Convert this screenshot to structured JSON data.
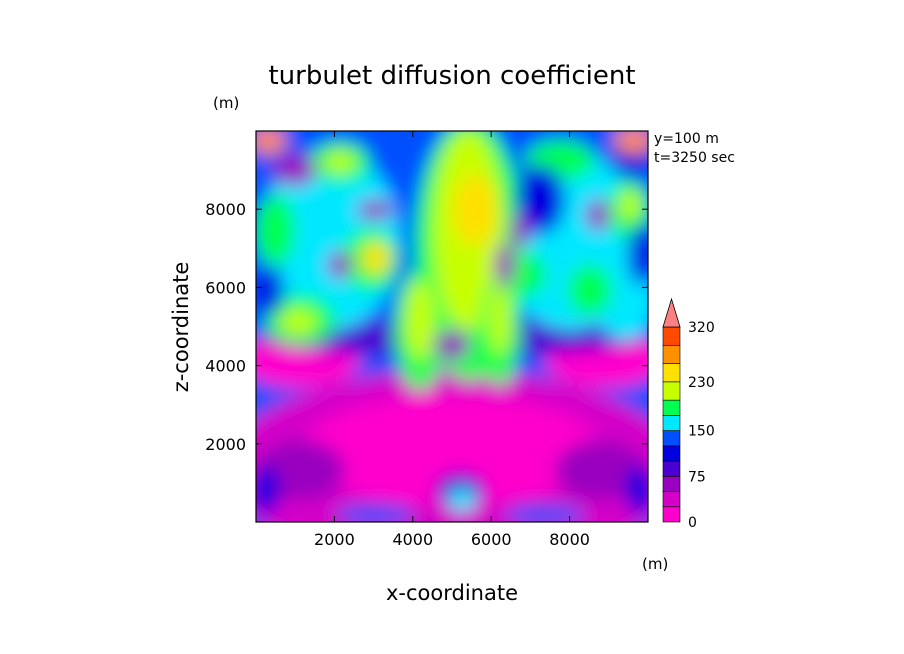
{
  "chart_data": {
    "type": "heatmap",
    "title": "turbulet diffusion coefficient",
    "xlabel": "x-coordinate",
    "ylabel": "z-coordinate",
    "x_unit": "(m)",
    "y_unit": "(m)",
    "annotations": [
      "y=100 m",
      "t=3250 sec"
    ],
    "xlim": [
      0,
      10000
    ],
    "ylim": [
      0,
      10000
    ],
    "x_ticks": [
      2000,
      4000,
      6000,
      8000
    ],
    "y_ticks": [
      2000,
      4000,
      6000,
      8000
    ],
    "colorbar": {
      "levels": [
        0,
        25,
        50,
        75,
        100,
        125,
        150,
        175,
        200,
        230,
        260,
        290,
        320
      ],
      "labels": [
        0,
        75,
        150,
        230,
        320
      ],
      "colors": [
        "#ff00cc",
        "#d400c8",
        "#9a00c0",
        "#4a00d0",
        "#0000e0",
        "#0050ff",
        "#00e8ff",
        "#00ff50",
        "#c8ff00",
        "#ffe000",
        "#ff9000",
        "#ff4a00",
        "#e00000"
      ],
      "extend_color": "#ff8080"
    }
  }
}
